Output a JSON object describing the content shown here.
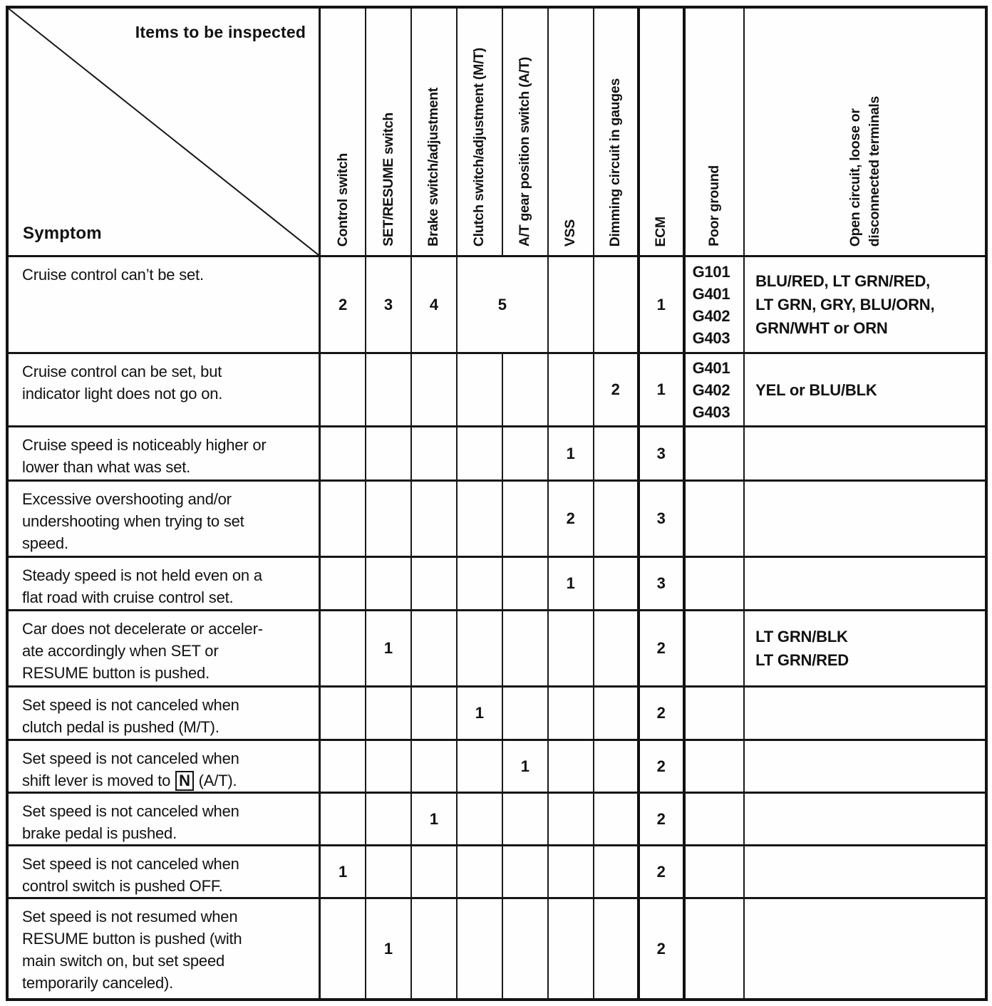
{
  "table": {
    "corner": {
      "top_label": "Items to be inspected",
      "bottom_label": "Symptom"
    },
    "columns": [
      {
        "key": "control-switch",
        "label": "Control switch"
      },
      {
        "key": "set-resume-switch",
        "label": "SET/RESUME switch"
      },
      {
        "key": "brake-switch-adjustment",
        "label": "Brake switch/adjustment"
      },
      {
        "key": "clutch-switch-adjustment-mt",
        "label": "Clutch switch/adjustment (M/T)"
      },
      {
        "key": "at-gear-position-switch-at",
        "label": "A/T gear position switch (A/T)"
      },
      {
        "key": "vss",
        "label": "VSS"
      },
      {
        "key": "dimming-circuit-in-gauges",
        "label": "Dimming circuit in gauges"
      },
      {
        "key": "ecm",
        "label": "ECM"
      },
      {
        "key": "poor-ground",
        "label": "Poor ground"
      },
      {
        "key": "open-circuit-loose-or-disconnected-terminals",
        "label": "Open circuit, loose or\ndisconnected terminals"
      }
    ],
    "rows": [
      {
        "symptom": "Cruise control can’t be set.",
        "cells": [
          "2",
          "3",
          "4",
          {
            "value": "5",
            "span": 2
          },
          "",
          "",
          "1"
        ],
        "poor_ground": "G101\nG401\nG402\nG403",
        "wiring": "BLU/RED, LT GRN/RED,\nLT GRN, GRY, BLU/ORN,\nGRN/WHT or ORN"
      },
      {
        "symptom": "Cruise control can be set, but\nindicator light does not go on.",
        "cells": [
          "",
          "",
          "",
          "",
          "",
          "",
          "2",
          "1"
        ],
        "poor_ground": "G401\nG402\nG403",
        "wiring": "YEL or BLU/BLK"
      },
      {
        "symptom": "Cruise speed is noticeably higher or\nlower than what was set.",
        "cells": [
          "",
          "",
          "",
          "",
          "",
          "1",
          "",
          "3"
        ],
        "poor_ground": "",
        "wiring": ""
      },
      {
        "symptom": "Excessive overshooting and/or\nundershooting when trying to set\nspeed.",
        "cells": [
          "",
          "",
          "",
          "",
          "",
          "2",
          "",
          "3"
        ],
        "poor_ground": "",
        "wiring": ""
      },
      {
        "symptom": "Steady speed is not held even on a\nflat road with cruise control set.",
        "cells": [
          "",
          "",
          "",
          "",
          "",
          "1",
          "",
          "3"
        ],
        "poor_ground": "",
        "wiring": ""
      },
      {
        "symptom": "Car does not decelerate or acceler-\nate accordingly when SET or\nRESUME button is pushed.",
        "cells": [
          "",
          "1",
          "",
          "",
          "",
          "",
          "",
          "2"
        ],
        "poor_ground": "",
        "wiring": "LT GRN/BLK\nLT GRN/RED"
      },
      {
        "symptom": "Set speed is not canceled when\nclutch pedal is pushed (M/T).",
        "cells": [
          "",
          "",
          "",
          "1",
          "",
          "",
          "",
          "2"
        ],
        "poor_ground": "",
        "wiring": ""
      },
      {
        "symptom_parts": [
          {
            "text": "Set speed is not canceled when\nshift lever is moved to "
          },
          {
            "text": "N",
            "boxed": true
          },
          {
            "text": " (A/T)."
          }
        ],
        "cells": [
          "",
          "",
          "",
          "",
          "1",
          "",
          "",
          "2"
        ],
        "poor_ground": "",
        "wiring": ""
      },
      {
        "symptom": "Set speed is not canceled when\nbrake pedal is pushed.",
        "cells": [
          "",
          "",
          "1",
          "",
          "",
          "",
          "",
          "2"
        ],
        "poor_ground": "",
        "wiring": ""
      },
      {
        "symptom": "Set speed is not canceled when\ncontrol switch is pushed OFF.",
        "cells": [
          "1",
          "",
          "",
          "",
          "",
          "",
          "",
          "2"
        ],
        "poor_ground": "",
        "wiring": ""
      },
      {
        "symptom": "Set speed is not resumed when\nRESUME button is pushed (with\nmain switch on, but set speed\ntemporarily canceled).",
        "cells": [
          "",
          "1",
          "",
          "",
          "",
          "",
          "",
          "2"
        ],
        "poor_ground": "",
        "wiring": ""
      }
    ]
  },
  "colors": {
    "ink": "#131313",
    "paper": "#fefefe"
  }
}
